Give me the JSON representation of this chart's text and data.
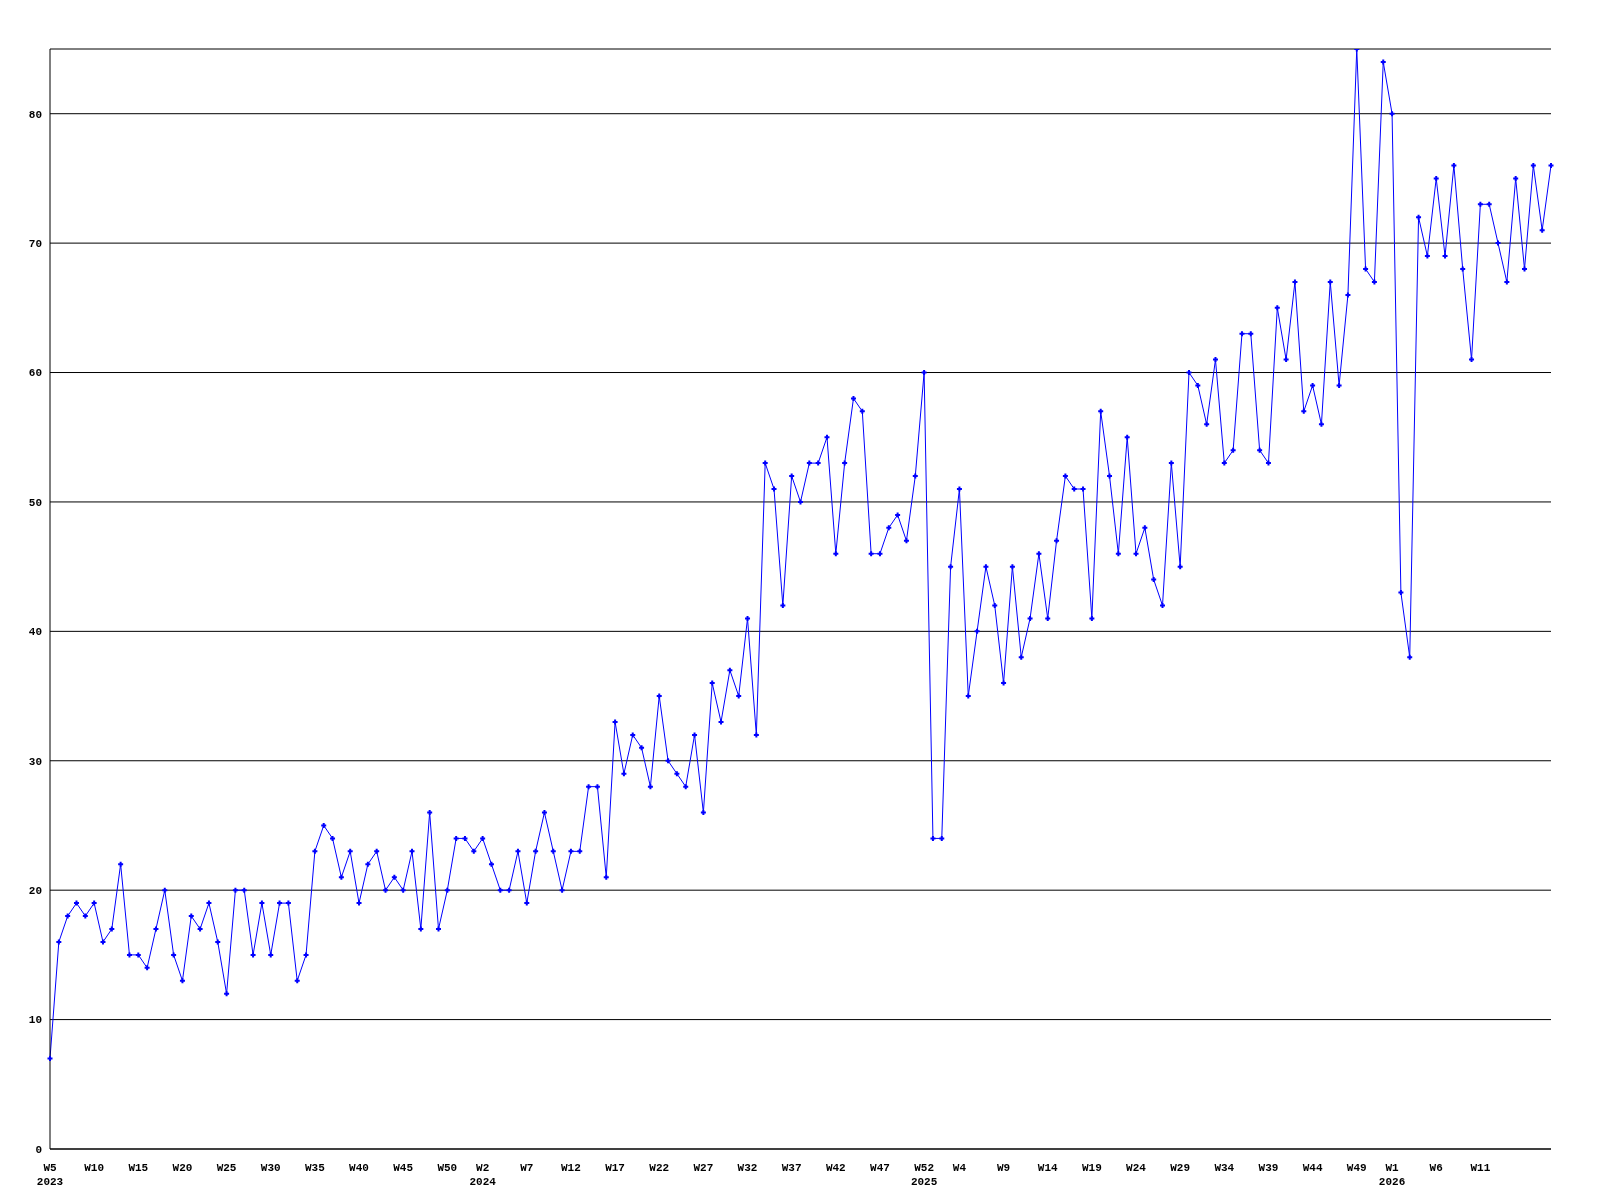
{
  "chart_data": {
    "type": "line",
    "categories": [
      "W5\n2023",
      null,
      null,
      null,
      null,
      "W10",
      null,
      null,
      null,
      null,
      "W15",
      null,
      null,
      null,
      null,
      "W20",
      null,
      null,
      null,
      null,
      "W25",
      null,
      null,
      null,
      null,
      "W30",
      null,
      null,
      null,
      null,
      "W35",
      null,
      null,
      null,
      null,
      "W40",
      null,
      null,
      null,
      null,
      "W45",
      null,
      null,
      null,
      null,
      "W50",
      null,
      null,
      null,
      "W2\n2024",
      null,
      null,
      null,
      null,
      "W7",
      null,
      null,
      null,
      null,
      "W12",
      null,
      null,
      null,
      null,
      "W17",
      null,
      null,
      null,
      null,
      "W22",
      null,
      null,
      null,
      null,
      "W27",
      null,
      null,
      null,
      null,
      "W32",
      null,
      null,
      null,
      null,
      "W37",
      null,
      null,
      null,
      null,
      "W42",
      null,
      null,
      null,
      null,
      "W47",
      null,
      null,
      null,
      null,
      "W52\n2025",
      null,
      null,
      null,
      "W4",
      null,
      null,
      null,
      null,
      "W9",
      null,
      null,
      null,
      null,
      "W14",
      null,
      null,
      null,
      null,
      "W19",
      null,
      null,
      null,
      null,
      "W24",
      null,
      null,
      null,
      null,
      "W29",
      null,
      null,
      null,
      null,
      "W34",
      null,
      null,
      null,
      null,
      "W39",
      null,
      null,
      null,
      null,
      "W44",
      null,
      null,
      null,
      null,
      "W49",
      null,
      null,
      null,
      "W1\n2026",
      null,
      null,
      null,
      null,
      "W6",
      null,
      null,
      null,
      null,
      "W11",
      null,
      null,
      null,
      null,
      null,
      null,
      null,
      null
    ],
    "series": [
      {
        "color": "#0000ff",
        "values": [
          7,
          16,
          18,
          19,
          18,
          19,
          16,
          17,
          22,
          15,
          15,
          14,
          17,
          20,
          15,
          13,
          18,
          17,
          19,
          16,
          12,
          20,
          20,
          15,
          19,
          15,
          19,
          19,
          13,
          15,
          23,
          25,
          24,
          21,
          23,
          19,
          22,
          23,
          20,
          21,
          20,
          23,
          17,
          26,
          17,
          20,
          24,
          24,
          23,
          24,
          22,
          20,
          20,
          23,
          19,
          23,
          26,
          23,
          20,
          23,
          23,
          28,
          28,
          21,
          33,
          29,
          32,
          31,
          28,
          35,
          30,
          29,
          28,
          32,
          26,
          36,
          33,
          37,
          35,
          41,
          32,
          53,
          51,
          42,
          52,
          50,
          53,
          53,
          55,
          46,
          53,
          58,
          57,
          46,
          46,
          48,
          49,
          47,
          52,
          60,
          24,
          24,
          45,
          51,
          35,
          40,
          45,
          42,
          36,
          45,
          38,
          41,
          46,
          41,
          47,
          52,
          51,
          51,
          41,
          57,
          52,
          46,
          55,
          46,
          48,
          44,
          42,
          53,
          45,
          60,
          59,
          56,
          61,
          53,
          54,
          63,
          63,
          54,
          53,
          65,
          61,
          67,
          57,
          59,
          56,
          67,
          59,
          66,
          85,
          68,
          67,
          84,
          80,
          43,
          38,
          72,
          69,
          75,
          69,
          76,
          68,
          61,
          73,
          73,
          70,
          67,
          75,
          68,
          76,
          71,
          76
        ]
      }
    ],
    "ylim": [
      0,
      85
    ],
    "yticks": [
      0,
      10,
      20,
      30,
      40,
      50,
      60,
      70,
      80
    ],
    "grid": "y",
    "marker": "cross",
    "line_style": "solid"
  }
}
